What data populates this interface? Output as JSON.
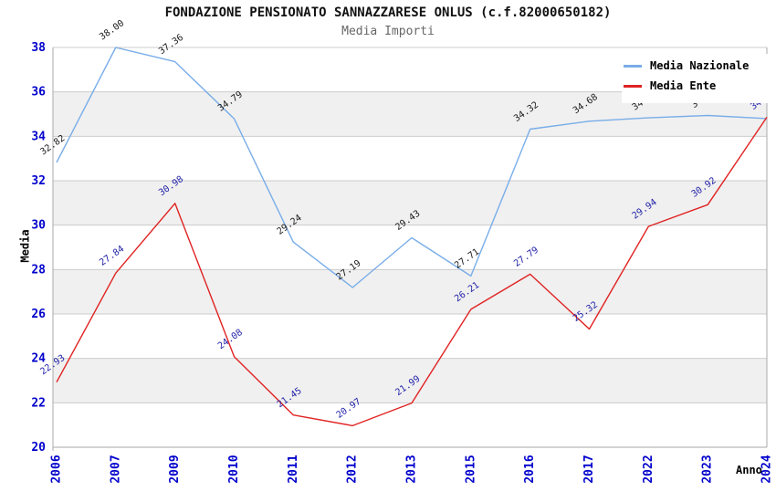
{
  "chart_data": {
    "type": "line",
    "title": "FONDAZIONE PENSIONATO SANNAZZARESE ONLUS (c.f.82000650182)",
    "subtitle": "Media Importi",
    "xlabel": "Anno",
    "ylabel": "Media",
    "ylim": [
      20,
      38
    ],
    "ytick_step": 2,
    "grid": {
      "horizontal": true,
      "band_color": "#F0F0F0",
      "gridline_color": "#CCCCCC",
      "border_color": "#AAAAAA"
    },
    "axis_tick_color": "#0000CC",
    "legend_position": "top-right",
    "categories": [
      "2006",
      "2007",
      "2009",
      "2010",
      "2011",
      "2012",
      "2013",
      "2015",
      "2016",
      "2017",
      "2022",
      "2023",
      "2024"
    ],
    "series": [
      {
        "name": "Media Nazionale",
        "color": "#79ADE8",
        "label_color": "#1A1A1A",
        "values": [
          32.82,
          38.0,
          37.36,
          34.79,
          29.24,
          27.19,
          29.43,
          27.71,
          34.32,
          34.68,
          34.83,
          34.94,
          34.8
        ],
        "labels": [
          "32.82",
          "38.00",
          "37.36",
          "34.79",
          "29.24",
          "27.19",
          "29.43",
          "27.71",
          "34.32",
          "34.68",
          "34.83",
          "34.94",
          ""
        ]
      },
      {
        "name": "Media Ente",
        "color": "#E02222",
        "label_color": "#2222AA",
        "values": [
          22.93,
          27.84,
          30.98,
          24.08,
          21.45,
          20.97,
          21.99,
          26.21,
          27.79,
          25.32,
          29.94,
          30.92,
          34.86
        ],
        "labels": [
          "22.93",
          "27.84",
          "30.98",
          "24.08",
          "21.45",
          "20.97",
          "21.99",
          "26.21",
          "27.79",
          "25.32",
          "29.94",
          "30.92",
          "34.86"
        ]
      }
    ]
  }
}
